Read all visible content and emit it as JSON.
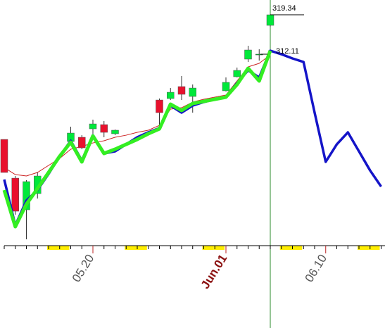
{
  "chart_data": {
    "type": "candlestick",
    "categories": [
      null,
      null,
      null,
      null,
      null,
      null,
      null,
      null,
      "05.20",
      null,
      null,
      null,
      null,
      null,
      null,
      null,
      null,
      null,
      null,
      null,
      "Jun.01",
      null,
      null,
      null,
      null,
      null,
      null,
      null,
      null,
      "06.10",
      null,
      null,
      null,
      null,
      null
    ],
    "open": [
      294.24,
      286.44,
      280.06,
      283.32,
      null,
      null,
      293.82,
      294.67,
      296.37,
      297.22,
      295.38,
      null,
      null,
      null,
      302.18,
      302.47,
      304.88,
      302.89,
      null,
      null,
      304.03,
      306.86,
      310.41,
      311.4,
      317.21,
      null,
      null,
      null,
      null,
      null,
      null,
      null,
      null,
      null,
      null
    ],
    "high": [
      294.24,
      286.87,
      286.02,
      287.58,
      null,
      null,
      296.8,
      295.09,
      298.21,
      297.93,
      296.23,
      null,
      null,
      null,
      302.47,
      304.59,
      307.01,
      305.3,
      null,
      null,
      306.72,
      308.71,
      313.1,
      312.39,
      319.34,
      null,
      null,
      null,
      null,
      null,
      null,
      null,
      null,
      null,
      null
    ],
    "low": [
      287.58,
      279.07,
      274.11,
      282.33,
      null,
      null,
      293.25,
      292.26,
      295.38,
      294.67,
      295.09,
      null,
      null,
      null,
      297.08,
      302.18,
      302.18,
      299.63,
      null,
      null,
      303.89,
      306.72,
      309.84,
      310.12,
      316.93,
      null,
      null,
      null,
      null,
      null,
      null,
      null,
      null,
      null,
      null
    ],
    "close": [
      287.58,
      279.78,
      285.74,
      286.87,
      null,
      null,
      295.52,
      292.54,
      297.36,
      295.66,
      296.09,
      null,
      null,
      null,
      299.63,
      303.74,
      303.32,
      304.59,
      null,
      null,
      305.73,
      308.14,
      312.25,
      311.4,
      319.34,
      null,
      null,
      null,
      null,
      null,
      null,
      null,
      null,
      null,
      null
    ],
    "up_color": "#00e83a",
    "down_color": "#e8112d",
    "series": [
      {
        "color": "#cc2222",
        "width": 1,
        "values": [
          288.57,
          287.15,
          286.87,
          287.58,
          289.0,
          290.41,
          292.26,
          292.83,
          293.53,
          293.96,
          294.67,
          295.09,
          295.66,
          296.09,
          297.08,
          300.34,
          300.62,
          301.76,
          302.33,
          302.75,
          303.18,
          306.01,
          308.85,
          309.56,
          311.26,
          null,
          null,
          null,
          null,
          null,
          null,
          null,
          null,
          null,
          null
        ]
      },
      {
        "color": "#1414c8",
        "width": 3.5,
        "values": [
          286.16,
          276.94,
          281.91,
          284.03,
          287.29,
          290.84,
          293.96,
          289.99,
          295.09,
          291.41,
          291.83,
          293.25,
          294.67,
          295.66,
          296.51,
          301.05,
          299.63,
          301.05,
          301.76,
          302.33,
          302.75,
          305.59,
          308.14,
          306.72,
          312.11,
          311.4,
          310.55,
          309.84,
          299.63,
          289.71,
          293.25,
          295.66,
          291.83,
          288.0,
          284.74
        ]
      },
      {
        "color": "#33ee22",
        "width": 5,
        "values": [
          284.03,
          276.66,
          281.2,
          284.32,
          287.58,
          290.84,
          293.68,
          289.71,
          294.95,
          291.41,
          292.26,
          293.25,
          294.24,
          295.38,
          296.37,
          301.33,
          300.06,
          301.47,
          301.9,
          302.33,
          302.75,
          305.3,
          308.56,
          306.01,
          312.11,
          null,
          null,
          null,
          null,
          null,
          null,
          null,
          null,
          null,
          null
        ]
      }
    ],
    "annotations": [
      319.34,
      312.11
    ],
    "ylim": [
      272.98,
      322.32
    ]
  }
}
